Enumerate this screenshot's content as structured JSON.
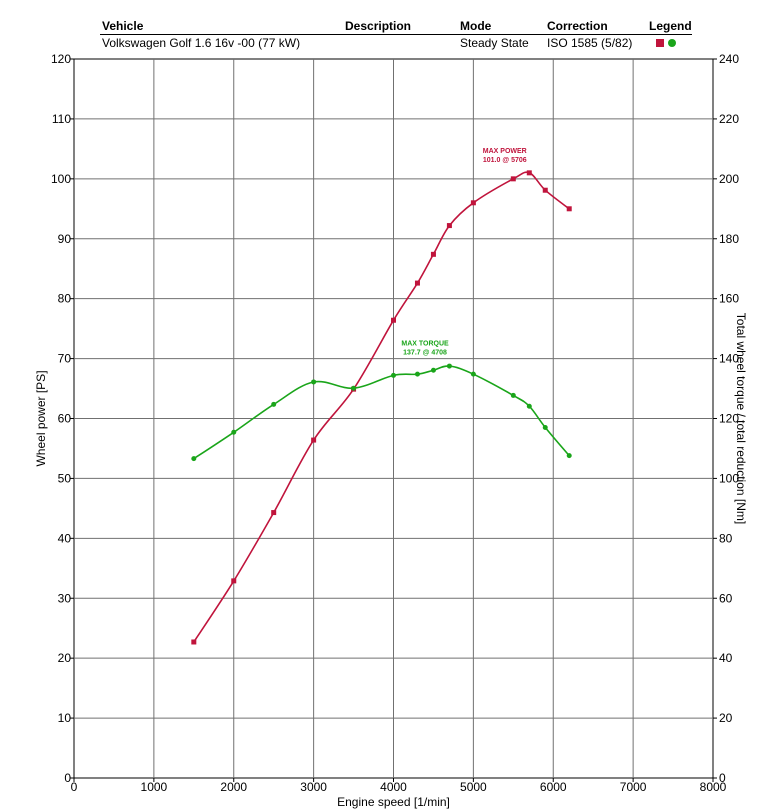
{
  "header": {
    "labels": {
      "vehicle": "Vehicle",
      "description": "Description",
      "mode": "Mode",
      "correction": "Correction",
      "legend": "Legend"
    },
    "values": {
      "vehicle": "Volkswagen Golf 1.6 16v -00 (77 kW)",
      "description": "",
      "mode": "Steady State",
      "correction": "ISO 1585 (5/82)"
    }
  },
  "colors": {
    "power": "#c0143c",
    "torque": "#1aa51a",
    "grid": "#707070"
  },
  "chart_data": {
    "type": "line",
    "title": "",
    "xlabel": "Engine speed [1/min]",
    "ylabel": "Wheel power [PS]",
    "y2label": "Total wheel torque / total reduction [Nm]",
    "xlim": [
      0,
      8000
    ],
    "ylim": [
      0,
      120
    ],
    "y2lim": [
      0,
      240
    ],
    "x_ticks": [
      0,
      1000,
      2000,
      3000,
      4000,
      5000,
      6000,
      7000,
      8000
    ],
    "y_ticks": [
      0,
      10,
      20,
      30,
      40,
      50,
      60,
      70,
      80,
      90,
      100,
      110,
      120
    ],
    "y2_ticks": [
      0,
      20,
      40,
      60,
      80,
      100,
      120,
      140,
      160,
      180,
      200,
      220,
      240
    ],
    "grid": true,
    "series": [
      {
        "key": "power",
        "axis": "left",
        "marker": "square",
        "x": [
          1500,
          2000,
          2500,
          3000,
          3500,
          4000,
          4300,
          4500,
          4700,
          5000,
          5500,
          5700,
          5900,
          6200
        ],
        "y": [
          22.7,
          32.9,
          44.3,
          56.4,
          64.9,
          76.4,
          82.6,
          87.4,
          92.2,
          96.0,
          100.0,
          101.0,
          98.1,
          95.0
        ]
      },
      {
        "key": "torque",
        "axis": "right",
        "marker": "circle",
        "x": [
          1500,
          2000,
          2500,
          3000,
          3500,
          4000,
          4300,
          4500,
          4700,
          5000,
          5500,
          5700,
          5900,
          6200
        ],
        "y": [
          106.6,
          115.4,
          124.7,
          132.2,
          130.1,
          134.4,
          134.8,
          136.1,
          137.5,
          134.8,
          127.7,
          124.1,
          117.0,
          107.6
        ]
      }
    ],
    "annotations": [
      {
        "series": "power",
        "lines": [
          "MAX POWER",
          "101.0 @ 5706"
        ],
        "x": 5706,
        "y": 101.0
      },
      {
        "series": "torque",
        "lines": [
          "MAX TORQUE",
          "137.7 @ 4708"
        ],
        "x": 4708,
        "y": 137.7
      }
    ]
  }
}
